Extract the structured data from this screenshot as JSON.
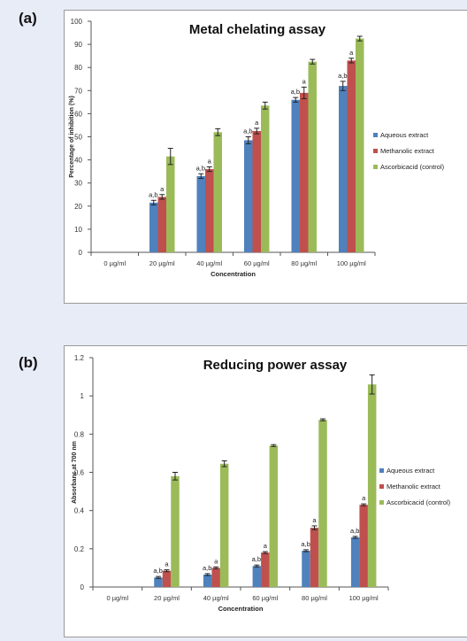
{
  "panels": [
    {
      "letter": "(a)",
      "chart_data": {
        "type": "bar",
        "title": "Metal chelating assay",
        "xlabel": "Concentration",
        "ylabel": "Percentage of inhibition (%)",
        "categories": [
          "0 µg/ml",
          "20 µg/ml",
          "40 µg/ml",
          "60 µg/ml",
          "80 µg/ml",
          "100 µg/ml"
        ],
        "ylim": [
          0,
          100
        ],
        "yticks": [
          0,
          10,
          20,
          30,
          40,
          50,
          60,
          70,
          80,
          90,
          100
        ],
        "ytick_labels": [
          "0",
          "10",
          "20",
          "30",
          "40",
          "50",
          "60",
          "70",
          "80",
          "90",
          "100"
        ],
        "legend_position": "right",
        "grid": false,
        "series": [
          {
            "name": "Aqueous extract",
            "color": "#4f81bd",
            "values": [
              0,
              21.5,
              33,
              48.5,
              66,
              72
            ],
            "errors": [
              0,
              1,
              1,
              1.5,
              1,
              2
            ],
            "labels": [
              "",
              "a,b",
              "a,b",
              "a,b",
              "a,b",
              "a,b"
            ]
          },
          {
            "name": "Methanolic extract",
            "color": "#c0504d",
            "values": [
              0,
              24,
              36,
              52.5,
              69,
              83
            ],
            "errors": [
              0,
              1,
              1,
              1.2,
              2.5,
              1
            ],
            "labels": [
              "",
              "a",
              "a",
              "a",
              "a",
              "a"
            ]
          },
          {
            "name": "Ascorbicacid (control)",
            "color": "#9bbb59",
            "values": [
              0,
              41.5,
              52,
              63.5,
              82.5,
              92.5
            ],
            "errors": [
              0,
              3.5,
              1.5,
              1.5,
              1,
              1
            ],
            "labels": [
              "",
              "",
              "",
              "",
              "",
              ""
            ]
          }
        ]
      }
    },
    {
      "letter": "(b)",
      "chart_data": {
        "type": "bar",
        "title": "Reducing power assay",
        "xlabel": "Concentration",
        "ylabel": "Absorbanc at 700 nm",
        "categories": [
          "0 µg/ml",
          "20 µg/ml",
          "40 µg/ml",
          "60 µg/ml",
          "80 µg/ml",
          "100 µg/ml"
        ],
        "ylim": [
          0,
          1.2
        ],
        "yticks": [
          0,
          0.2,
          0.4,
          0.6,
          0.8,
          1,
          1.2
        ],
        "ytick_labels": [
          "0",
          "0.2",
          "0.4",
          "0.6",
          "0.8",
          "1",
          "1.2"
        ],
        "legend_position": "right",
        "grid": false,
        "series": [
          {
            "name": "Aqueous extract",
            "color": "#4f81bd",
            "values": [
              0,
              0.05,
              0.065,
              0.11,
              0.19,
              0.26
            ],
            "errors": [
              0,
              0.005,
              0.005,
              0.005,
              0.005,
              0.005
            ],
            "labels": [
              "",
              "a,b",
              "a,b",
              "a,b",
              "a,b",
              "a,b"
            ]
          },
          {
            "name": "Methanolic extract",
            "color": "#c0504d",
            "values": [
              0,
              0.085,
              0.1,
              0.18,
              0.31,
              0.43
            ],
            "errors": [
              0,
              0.005,
              0.005,
              0.005,
              0.01,
              0.005
            ],
            "labels": [
              "",
              "a",
              "a",
              "a",
              "a",
              "a"
            ]
          },
          {
            "name": "Ascorbicacid (control)",
            "color": "#9bbb59",
            "values": [
              0,
              0.58,
              0.645,
              0.74,
              0.875,
              1.06
            ],
            "errors": [
              0,
              0.02,
              0.015,
              0.005,
              0.005,
              0.05
            ],
            "labels": [
              "",
              "",
              "",
              "",
              "",
              ""
            ]
          }
        ]
      }
    }
  ]
}
